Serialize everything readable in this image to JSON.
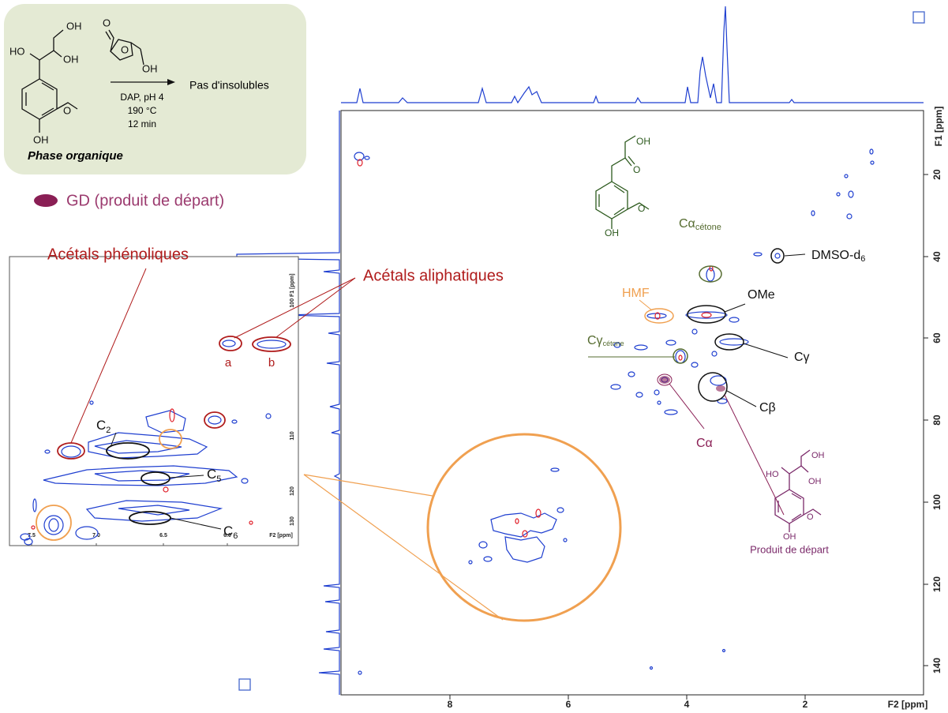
{
  "scheme": {
    "gd_atoms": [
      "OH",
      "HO",
      "OH",
      "O",
      "OH"
    ],
    "hmf_atoms": [
      "O",
      "O",
      "OH"
    ],
    "conditions": [
      "DAP, pH 4",
      "190 °C",
      "12 min"
    ],
    "result": "Pas d'insolubles",
    "caption": "Phase organique"
  },
  "legend": {
    "label": "GD (produit de départ)"
  },
  "callouts": {
    "phenolic": "Acétals phénoliques",
    "aliphatic": "Acétals aliphatiques"
  },
  "main_plot": {
    "x_label": "F2 [ppm]",
    "y_label": "F1 [ppm]",
    "x_ticks": [
      "8",
      "6",
      "4",
      "2"
    ],
    "y_ticks": [
      "20",
      "40",
      "60",
      "80",
      "100",
      "120",
      "140"
    ],
    "peaks": {
      "ketone_ca": {
        "main": "Cα",
        "sub": "cétone"
      },
      "hmf": "HMF",
      "ome": "OMe",
      "dmso": {
        "main": "DMSO-d",
        "sub": "6"
      },
      "ketone_cg": {
        "main": "Cγ",
        "sub": "cétone"
      },
      "cg": "Cγ",
      "cb": "Cβ",
      "ca": "Cα"
    },
    "ketone_atoms": [
      "OH",
      "O",
      "O",
      "OH"
    ],
    "product_atoms": [
      "OH",
      "HO",
      "OH",
      "O",
      "OH"
    ],
    "product_caption": "Produit de départ"
  },
  "inset": {
    "x_ticks": [
      "7.5",
      "7.0",
      "6.5",
      "6.0"
    ],
    "x_label": "F2 [ppm]",
    "y_ticks": [
      "100 F1 [ppm]",
      "110",
      "120",
      "130"
    ],
    "labels": {
      "a": "a",
      "b": "b",
      "c2": {
        "main": "C",
        "sub": "2"
      },
      "c5": {
        "main": "C",
        "sub": "5"
      },
      "c6": {
        "main": "C",
        "sub": "6"
      }
    }
  }
}
